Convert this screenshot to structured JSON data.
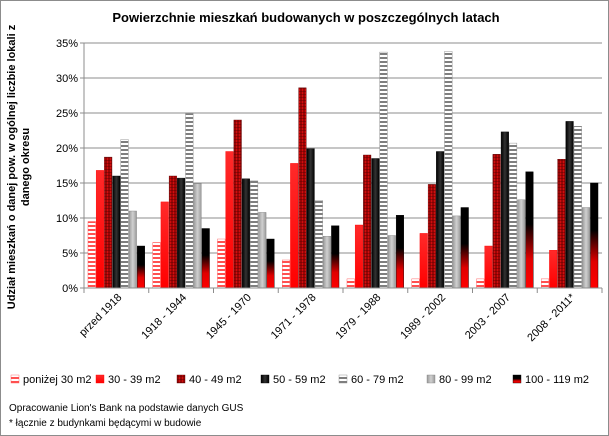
{
  "chart_data": {
    "type": "bar",
    "title": "Powierzchnie mieszkań budowanych w poszczególnych latach",
    "ylabel_line1": "Udział mieszkań o danej pow. w ogólnej liczbie lokali z",
    "ylabel_line2": "danego okresu",
    "ylim": [
      0,
      35
    ],
    "yticks": [
      "0%",
      "5%",
      "10%",
      "15%",
      "20%",
      "25%",
      "30%",
      "35%"
    ],
    "grid": true,
    "legend_position": "bottom",
    "categories": [
      "przed 1918",
      "1918 - 1944",
      "1945 - 1970",
      "1971 - 1978",
      "1979 - 1988",
      "1989 - 2002",
      "2003 - 2007",
      "2008 - 2011*"
    ],
    "series": [
      {
        "name": "poniżej 30 m2",
        "values": [
          9.5,
          6.5,
          7.0,
          4.0,
          1.3,
          1.3,
          1.3,
          1.3
        ]
      },
      {
        "name": "30 - 39 m2",
        "values": [
          16.8,
          12.3,
          19.5,
          17.8,
          9.0,
          7.8,
          6.0,
          5.4
        ]
      },
      {
        "name": "40 - 49 m2",
        "values": [
          18.7,
          16.0,
          24.0,
          28.6,
          19.0,
          14.8,
          19.1,
          18.4
        ]
      },
      {
        "name": "50 - 59 m2",
        "values": [
          16.0,
          15.7,
          15.6,
          19.9,
          18.5,
          19.5,
          22.3,
          23.8
        ]
      },
      {
        "name": "60 - 79 m2",
        "values": [
          21.2,
          24.9,
          15.3,
          12.5,
          33.7,
          33.8,
          20.7,
          23.1
        ]
      },
      {
        "name": "80 - 99 m2",
        "values": [
          11.0,
          14.9,
          10.8,
          7.4,
          7.5,
          10.3,
          12.6,
          11.5
        ]
      },
      {
        "name": "100 - 119 m2",
        "values": [
          6.0,
          8.5,
          7.0,
          8.9,
          10.4,
          11.5,
          16.6,
          15.0
        ]
      }
    ],
    "colors": [
      "#ff3333",
      "#e80000",
      "#c00000",
      "#000000",
      "#bfbfbf",
      "#808080",
      "#e00000"
    ]
  },
  "notes": {
    "line1": "Opracowanie Lion's Bank na podstawie danych GUS",
    "line2": "* łącznie z budynkami będącymi w budowie"
  }
}
